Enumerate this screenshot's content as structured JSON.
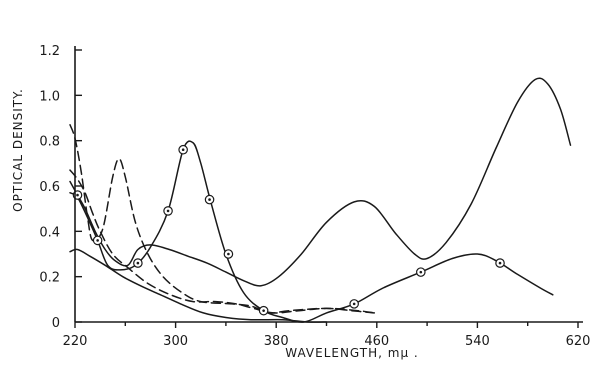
{
  "chart_data": {
    "type": "line",
    "xlabel": "WAVELENGTH, mμ .",
    "ylabel": "OPTICAL DENSITY.",
    "xlim": [
      220,
      620
    ],
    "ylim": [
      0,
      1.2
    ],
    "x_ticks": [
      "220",
      "300",
      "380",
      "460",
      "540",
      "620"
    ],
    "x_minor_ticks": [
      260,
      340,
      420,
      500,
      580
    ],
    "y_ticks": [
      "0",
      "0.2",
      "0.4",
      "0.6",
      "0.8",
      "1.0",
      "1.2"
    ],
    "grid": false,
    "series": [
      {
        "style": "solid",
        "marker": "none",
        "points": [
          [
            216,
            0.62
          ],
          [
            222,
            0.56
          ],
          [
            228,
            0.5
          ],
          [
            236,
            0.4
          ],
          [
            244,
            0.32
          ],
          [
            252,
            0.27
          ],
          [
            262,
            0.25
          ],
          [
            270,
            0.32
          ],
          [
            280,
            0.34
          ],
          [
            295,
            0.32
          ],
          [
            310,
            0.29
          ],
          [
            325,
            0.26
          ],
          [
            340,
            0.22
          ],
          [
            355,
            0.18
          ],
          [
            368,
            0.16
          ],
          [
            382,
            0.2
          ],
          [
            400,
            0.3
          ],
          [
            420,
            0.44
          ],
          [
            442,
            0.53
          ],
          [
            458,
            0.51
          ],
          [
            475,
            0.39
          ],
          [
            490,
            0.3
          ],
          [
            500,
            0.28
          ],
          [
            515,
            0.35
          ],
          [
            535,
            0.52
          ],
          [
            555,
            0.77
          ],
          [
            572,
            0.97
          ],
          [
            586,
            1.07
          ],
          [
            596,
            1.05
          ],
          [
            606,
            0.94
          ],
          [
            614,
            0.78
          ]
        ]
      },
      {
        "style": "solid",
        "marker": "dot",
        "points": [
          [
            216,
            0.57
          ],
          [
            222,
            0.55
          ],
          [
            230,
            0.46
          ],
          [
            238,
            0.36
          ],
          [
            246,
            0.25
          ],
          [
            256,
            0.23
          ],
          [
            268,
            0.25
          ],
          [
            280,
            0.33
          ],
          [
            294,
            0.49
          ],
          [
            306,
            0.76
          ],
          [
            314,
            0.79
          ],
          [
            320,
            0.7
          ],
          [
            328,
            0.53
          ],
          [
            340,
            0.3
          ],
          [
            354,
            0.13
          ],
          [
            370,
            0.05
          ],
          [
            385,
            0.02
          ],
          [
            402,
            0.0
          ],
          [
            420,
            0.04
          ],
          [
            442,
            0.08
          ],
          [
            465,
            0.15
          ],
          [
            495,
            0.22
          ],
          [
            520,
            0.28
          ],
          [
            540,
            0.3
          ],
          [
            555,
            0.27
          ],
          [
            572,
            0.21
          ],
          [
            590,
            0.15
          ],
          [
            600,
            0.12
          ]
        ],
        "marked_points": [
          [
            222,
            0.56
          ],
          [
            238,
            0.36
          ],
          [
            270,
            0.26
          ],
          [
            294,
            0.49
          ],
          [
            306,
            0.76
          ],
          [
            327,
            0.54
          ],
          [
            342,
            0.3
          ],
          [
            370,
            0.05
          ],
          [
            442,
            0.08
          ],
          [
            495,
            0.22
          ],
          [
            558,
            0.26
          ]
        ]
      },
      {
        "style": "solid",
        "marker": "none",
        "points": [
          [
            216,
            0.31
          ],
          [
            222,
            0.32
          ],
          [
            232,
            0.29
          ],
          [
            244,
            0.25
          ],
          [
            258,
            0.2
          ],
          [
            272,
            0.16
          ],
          [
            288,
            0.12
          ],
          [
            304,
            0.08
          ],
          [
            322,
            0.04
          ],
          [
            340,
            0.02
          ],
          [
            360,
            0.01
          ],
          [
            385,
            0.01
          ],
          [
            405,
            0.0
          ],
          [
            420,
            0.0
          ]
        ]
      },
      {
        "style": "dashed",
        "marker": "none",
        "points": [
          [
            216,
            0.87
          ],
          [
            220,
            0.81
          ],
          [
            225,
            0.66
          ],
          [
            230,
            0.46
          ],
          [
            234,
            0.36
          ],
          [
            242,
            0.41
          ],
          [
            250,
            0.64
          ],
          [
            255,
            0.72
          ],
          [
            260,
            0.64
          ],
          [
            268,
            0.44
          ],
          [
            278,
            0.3
          ],
          [
            290,
            0.2
          ],
          [
            305,
            0.13
          ],
          [
            320,
            0.09
          ],
          [
            345,
            0.08
          ],
          [
            360,
            0.07
          ],
          [
            375,
            0.04
          ],
          [
            390,
            0.05
          ],
          [
            420,
            0.06
          ],
          [
            445,
            0.05
          ],
          [
            458,
            0.04
          ]
        ]
      },
      {
        "style": "dashed",
        "marker": "none",
        "points": [
          [
            216,
            0.67
          ],
          [
            222,
            0.63
          ],
          [
            228,
            0.57
          ],
          [
            234,
            0.48
          ],
          [
            240,
            0.4
          ],
          [
            250,
            0.3
          ],
          [
            262,
            0.24
          ],
          [
            278,
            0.17
          ],
          [
            296,
            0.12
          ],
          [
            314,
            0.09
          ],
          [
            332,
            0.09
          ],
          [
            348,
            0.08
          ],
          [
            362,
            0.06
          ],
          [
            378,
            0.04
          ],
          [
            398,
            0.05
          ],
          [
            420,
            0.06
          ],
          [
            440,
            0.05
          ],
          [
            458,
            0.04
          ]
        ]
      }
    ]
  }
}
